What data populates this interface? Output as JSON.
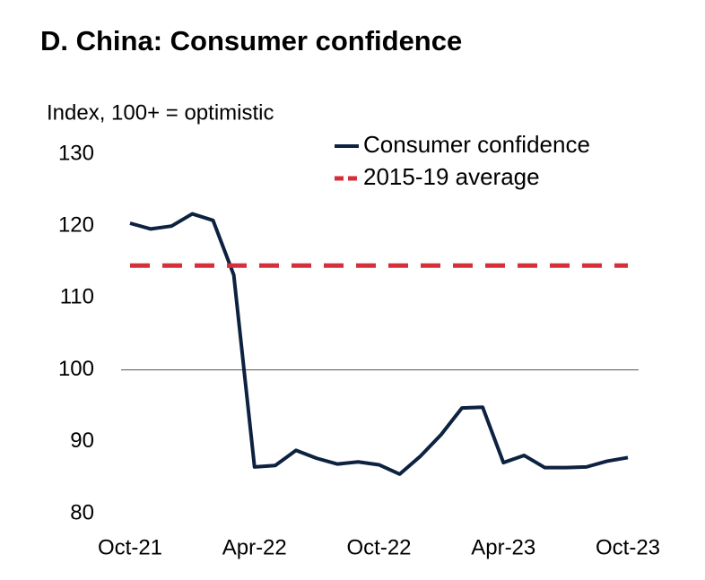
{
  "chart_data": {
    "type": "line",
    "title": "D. China: Consumer confidence",
    "y_label": "Index, 100+ = optimistic",
    "categories": [
      "Oct-21",
      null,
      null,
      null,
      null,
      null,
      "Apr-22",
      null,
      null,
      null,
      null,
      null,
      "Oct-22",
      null,
      null,
      null,
      null,
      null,
      "Apr-23",
      null,
      null,
      null,
      null,
      null,
      "Oct-23"
    ],
    "series": [
      {
        "name": "Consumer confidence",
        "color": "#0d2240",
        "dashed": false,
        "values": [
          120.4,
          119.6,
          120.0,
          121.7,
          120.8,
          113.2,
          86.5,
          86.7,
          88.8,
          87.7,
          86.9,
          87.2,
          86.8,
          85.5,
          88.0,
          91.0,
          94.7,
          94.8,
          87.1,
          88.1,
          86.4,
          86.4,
          86.5,
          87.3,
          87.8
        ]
      },
      {
        "name": "2015-19 average",
        "color": "#d62f3a",
        "dashed": true,
        "values": [
          114.5,
          114.5,
          114.5,
          114.5,
          114.5,
          114.5,
          114.5,
          114.5,
          114.5,
          114.5,
          114.5,
          114.5,
          114.5,
          114.5,
          114.5,
          114.5,
          114.5,
          114.5,
          114.5,
          114.5,
          114.5,
          114.5,
          114.5,
          114.5,
          114.5
        ]
      }
    ],
    "ylim": [
      80,
      130
    ],
    "yticks": [
      80,
      90,
      100,
      110,
      120,
      130
    ],
    "reference_line": 100,
    "legend": "top-right",
    "grid": false
  }
}
